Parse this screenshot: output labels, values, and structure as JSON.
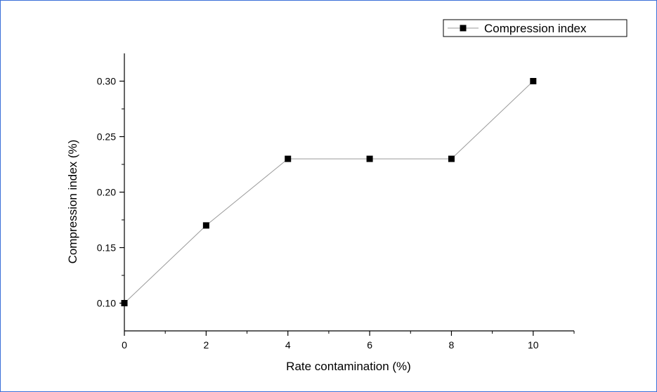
{
  "chart_data": {
    "type": "line",
    "xlabel": "Rate contamination (%)",
    "ylabel": "Compression index (%)",
    "xlim": [
      0,
      11
    ],
    "ylim": [
      0.075,
      0.325
    ],
    "x_ticks": [
      0,
      2,
      4,
      6,
      8,
      10
    ],
    "y_ticks": [
      "0.10",
      "0.15",
      "0.20",
      "0.25",
      "0.30"
    ],
    "x_minor_ticks": [
      1,
      3,
      5,
      7,
      9,
      11
    ],
    "y_minor_ticks": [
      0.125,
      0.175,
      0.225,
      0.275
    ],
    "legend_position": "top-right",
    "series": [
      {
        "name": "Compression index",
        "marker": "square",
        "line_color": "#9a9a9a",
        "marker_color": "#000000",
        "x": [
          0,
          2,
          4,
          6,
          8,
          10
        ],
        "y": [
          0.1,
          0.17,
          0.23,
          0.23,
          0.23,
          0.3
        ]
      }
    ]
  }
}
